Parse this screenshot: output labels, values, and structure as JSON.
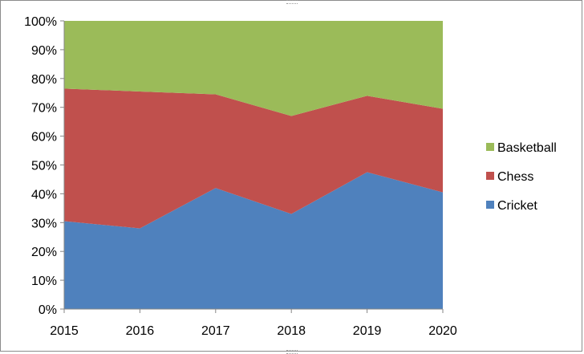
{
  "chart_data": {
    "type": "area",
    "stacking": "percent",
    "title": "",
    "xlabel": "",
    "ylabel": "",
    "x": [
      "2015",
      "2016",
      "2017",
      "2018",
      "2019",
      "2020"
    ],
    "ylim": [
      0,
      100
    ],
    "yticks": [
      "0%",
      "10%",
      "20%",
      "30%",
      "40%",
      "50%",
      "60%",
      "70%",
      "80%",
      "90%",
      "100%"
    ],
    "grid": false,
    "legend_position": "right",
    "series": [
      {
        "name": "Cricket",
        "color": "#4F81BD",
        "values": [
          30.5,
          28,
          42,
          33,
          47.5,
          40.5
        ]
      },
      {
        "name": "Chess",
        "color": "#C0504D",
        "values": [
          46,
          47.5,
          32.5,
          34,
          26.5,
          29
        ]
      },
      {
        "name": "Basketball",
        "color": "#9BBB59",
        "values": [
          23.5,
          24.5,
          25.5,
          33,
          26,
          30.5
        ]
      }
    ],
    "legend_order": [
      "Basketball",
      "Chess",
      "Cricket"
    ]
  }
}
